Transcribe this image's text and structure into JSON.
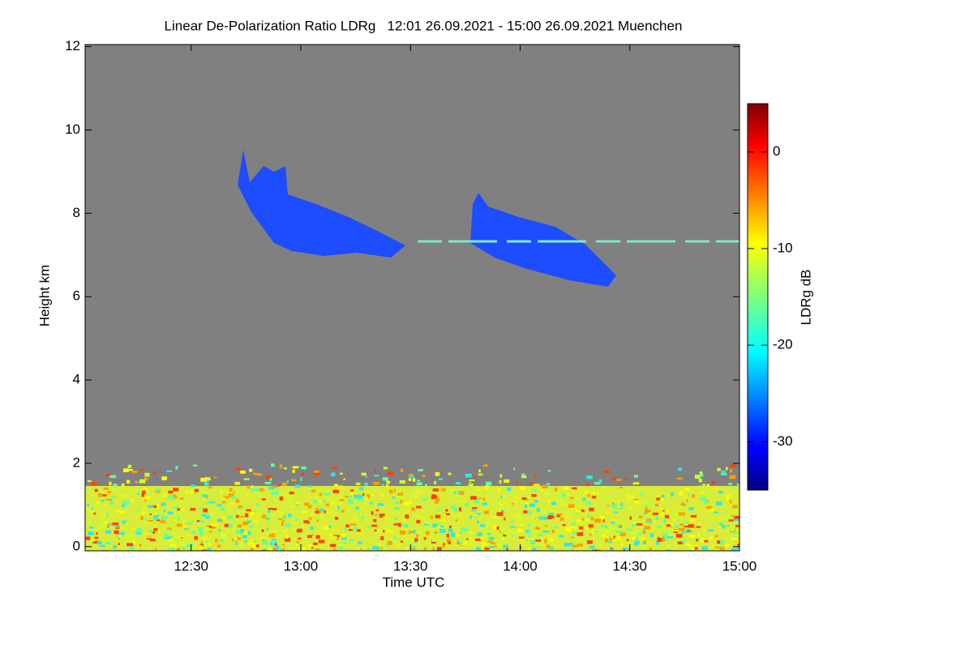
{
  "chart_data": {
    "type": "heatmap",
    "title": "Linear De-Polarization Ratio LDRg   12:01 26.09.2021 - 15:00 26.09.2021 Muenchen",
    "xlabel": "Time UTC",
    "ylabel": "Height km",
    "colorbar_label": "LDRg dB",
    "xlim": [
      721,
      900
    ],
    "xticks": [
      {
        "value": 750,
        "label": "12:30"
      },
      {
        "value": 780,
        "label": "13:00"
      },
      {
        "value": 810,
        "label": "13:30"
      },
      {
        "value": 840,
        "label": "14:00"
      },
      {
        "value": 870,
        "label": "14:30"
      },
      {
        "value": 900,
        "label": "15:00"
      }
    ],
    "ylim": [
      -0.1,
      12.05
    ],
    "yticks": [
      0,
      2,
      4,
      6,
      8,
      10,
      12
    ],
    "clim": [
      -35,
      5
    ],
    "cticks": [
      0,
      -10,
      -20,
      -30
    ],
    "colormap": "jet",
    "background": "#808080"
  }
}
